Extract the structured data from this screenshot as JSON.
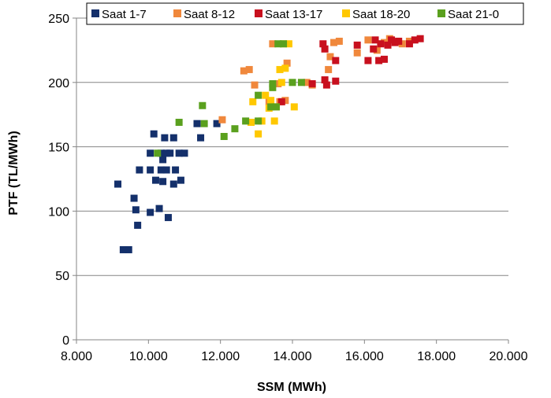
{
  "chart_data": {
    "type": "scatter",
    "title": "",
    "xlabel": "SSM (MWh)",
    "ylabel": "PTF (TL/MWh)",
    "xlim": [
      8000,
      20000
    ],
    "ylim": [
      0,
      250
    ],
    "x_ticks": [
      8000,
      10000,
      12000,
      14000,
      16000,
      18000,
      20000
    ],
    "x_tick_labels": [
      "8.000",
      "10.000",
      "12.000",
      "14.000",
      "16.000",
      "18.000",
      "20.000"
    ],
    "y_ticks": [
      0,
      50,
      100,
      150,
      200,
      250
    ],
    "y_tick_labels": [
      "0",
      "50",
      "100",
      "150",
      "200",
      "250"
    ],
    "grid": "horizontal",
    "legend_position": "top",
    "series": [
      {
        "name": "Saat 1-7",
        "color": "#14306b",
        "points": [
          [
            9150,
            121
          ],
          [
            9300,
            70
          ],
          [
            9450,
            70
          ],
          [
            9600,
            110
          ],
          [
            9650,
            101
          ],
          [
            9700,
            89
          ],
          [
            9750,
            132
          ],
          [
            10050,
            145
          ],
          [
            10050,
            132
          ],
          [
            10050,
            99
          ],
          [
            10150,
            160
          ],
          [
            10200,
            124
          ],
          [
            10300,
            102
          ],
          [
            10350,
            145
          ],
          [
            10350,
            132
          ],
          [
            10400,
            140
          ],
          [
            10400,
            123
          ],
          [
            10450,
            157
          ],
          [
            10500,
            145
          ],
          [
            10500,
            132
          ],
          [
            10550,
            95
          ],
          [
            10600,
            145
          ],
          [
            10700,
            157
          ],
          [
            10700,
            121
          ],
          [
            10750,
            132
          ],
          [
            10850,
            145
          ],
          [
            10900,
            124
          ],
          [
            11000,
            145
          ],
          [
            11350,
            168
          ],
          [
            11450,
            157
          ],
          [
            11900,
            168
          ]
        ]
      },
      {
        "name": "Saat 8-12",
        "color": "#f0883c",
        "points": [
          [
            12050,
            171
          ],
          [
            12650,
            209
          ],
          [
            12800,
            210
          ],
          [
            12950,
            198
          ],
          [
            13350,
            185
          ],
          [
            13450,
            230
          ],
          [
            13600,
            199
          ],
          [
            13650,
            185
          ],
          [
            13800,
            186
          ],
          [
            13850,
            215
          ],
          [
            14400,
            200
          ],
          [
            14550,
            198
          ],
          [
            15000,
            210
          ],
          [
            15050,
            220
          ],
          [
            15150,
            231
          ],
          [
            15300,
            232
          ],
          [
            15800,
            223
          ],
          [
            16100,
            233
          ],
          [
            16350,
            225
          ],
          [
            16550,
            231
          ],
          [
            16700,
            234
          ],
          [
            16900,
            232
          ],
          [
            17050,
            230
          ],
          [
            17250,
            232
          ]
        ]
      },
      {
        "name": "Saat 13-17",
        "color": "#c8101e",
        "points": [
          [
            13700,
            185
          ],
          [
            14550,
            199
          ],
          [
            14850,
            230
          ],
          [
            14900,
            226
          ],
          [
            14900,
            202
          ],
          [
            14950,
            198
          ],
          [
            15200,
            217
          ],
          [
            15200,
            201
          ],
          [
            15800,
            229
          ],
          [
            16100,
            217
          ],
          [
            16250,
            226
          ],
          [
            16300,
            233
          ],
          [
            16400,
            217
          ],
          [
            16450,
            230
          ],
          [
            16550,
            218
          ],
          [
            16650,
            229
          ],
          [
            16750,
            233
          ],
          [
            16850,
            231
          ],
          [
            16950,
            232
          ],
          [
            17250,
            230
          ],
          [
            17400,
            233
          ],
          [
            17550,
            234
          ]
        ]
      },
      {
        "name": "Saat 18-20",
        "color": "#ffc800",
        "points": [
          [
            12850,
            169
          ],
          [
            12900,
            185
          ],
          [
            13050,
            160
          ],
          [
            13150,
            170
          ],
          [
            13250,
            190
          ],
          [
            13350,
            180
          ],
          [
            13400,
            186
          ],
          [
            13500,
            170
          ],
          [
            13550,
            181
          ],
          [
            13650,
            210
          ],
          [
            13700,
            200
          ],
          [
            13750,
            230
          ],
          [
            13800,
            211
          ],
          [
            13900,
            230
          ],
          [
            14050,
            181
          ]
        ]
      },
      {
        "name": "Saat 21-0",
        "color": "#5aa01e",
        "points": [
          [
            10250,
            145
          ],
          [
            10850,
            169
          ],
          [
            11500,
            182
          ],
          [
            11550,
            168
          ],
          [
            12100,
            158
          ],
          [
            12400,
            164
          ],
          [
            12700,
            170
          ],
          [
            13050,
            190
          ],
          [
            13050,
            170
          ],
          [
            13400,
            181
          ],
          [
            13450,
            196
          ],
          [
            13450,
            199
          ],
          [
            13550,
            181
          ],
          [
            13600,
            230
          ],
          [
            13750,
            230
          ],
          [
            14000,
            200
          ],
          [
            14250,
            200
          ]
        ]
      }
    ]
  }
}
